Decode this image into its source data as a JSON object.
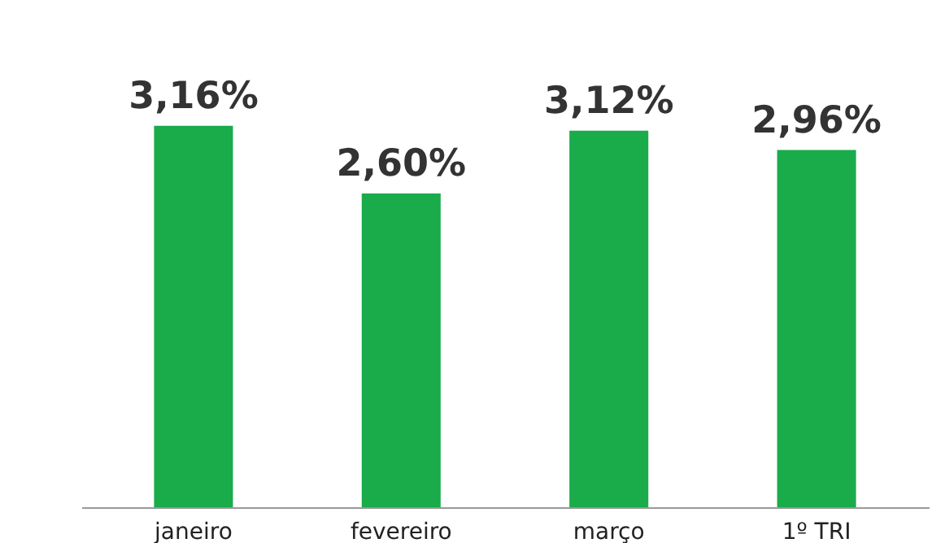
{
  "chart_data": {
    "type": "bar",
    "categories": [
      "janeiro",
      "fevereiro",
      "março",
      "1º TRI"
    ],
    "values": [
      3.16,
      2.6,
      3.12,
      2.96
    ],
    "value_labels": [
      "3,16%",
      "2,60%",
      "3,12%",
      "2,96%"
    ],
    "color": "#1aab4b"
  }
}
